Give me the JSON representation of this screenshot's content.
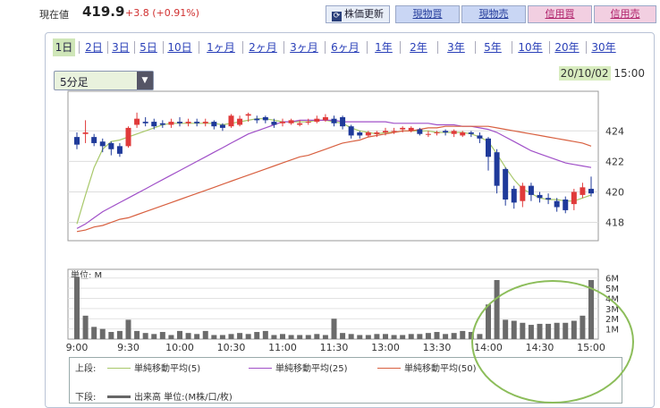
{
  "quote": {
    "label": "現在値",
    "price": "419.9",
    "change": "+3.8 (+0.91%)"
  },
  "actions": [
    {
      "label": "株価更新",
      "style": "refresh"
    },
    {
      "label": "現物買",
      "style": "blue"
    },
    {
      "label": "現物売",
      "style": "blue"
    },
    {
      "label": "信用買",
      "style": "pink"
    },
    {
      "label": "信用売",
      "style": "pink"
    }
  ],
  "tabs": [
    "1日",
    "2日",
    "3日",
    "5日",
    "10日",
    "1ヶ月",
    "2ヶ月",
    "3ヶ月",
    "6ヶ月",
    "1年",
    "2年",
    "3年",
    "5年",
    "10年",
    "20年",
    "30年"
  ],
  "active_tab": 0,
  "interval": {
    "selected": "5分足"
  },
  "datetime": {
    "date": "20/10/02",
    "time": "15:00"
  },
  "legend": {
    "upper_label": "上段:",
    "lower_label": "下段:",
    "items": [
      {
        "label": "単純移動平均(5)",
        "color": "#a8c86a"
      },
      {
        "label": "単純移動平均(25)",
        "color": "#a050c8"
      },
      {
        "label": "単純移動平均(50)",
        "color": "#d86040"
      }
    ],
    "volume_label": "出来高 単位:(M株/口/枚)",
    "volume_color": "#666666"
  },
  "volume_unit_label": "単位: M",
  "chart_data": [
    {
      "type": "candlestick",
      "x": [
        "9:00",
        "9:05",
        "9:10",
        "9:15",
        "9:20",
        "9:25",
        "9:30",
        "9:35",
        "9:40",
        "9:45",
        "9:50",
        "9:55",
        "10:00",
        "10:05",
        "10:10",
        "10:15",
        "10:20",
        "10:25",
        "10:30",
        "10:35",
        "10:40",
        "10:45",
        "10:50",
        "10:55",
        "11:00",
        "11:05",
        "11:10",
        "11:15",
        "11:20",
        "11:25",
        "11:30",
        "12:35",
        "12:40",
        "12:45",
        "12:50",
        "12:55",
        "13:00",
        "13:05",
        "13:10",
        "13:15",
        "13:20",
        "13:25",
        "13:30",
        "13:35",
        "13:40",
        "13:45",
        "13:50",
        "13:55",
        "14:00",
        "14:05",
        "14:10",
        "14:15",
        "14:20",
        "14:25",
        "14:30",
        "14:35",
        "14:40",
        "14:45",
        "14:50",
        "14:55",
        "15:00"
      ],
      "x_tick_labels": [
        "9:00",
        "9:30",
        "10:00",
        "10:30",
        "11:00",
        "11:30",
        "13:00",
        "13:30",
        "14:00",
        "14:30",
        "15:00"
      ],
      "ylim": [
        416.8,
        426.6
      ],
      "y_ticks": [
        418,
        420,
        422,
        424
      ],
      "open": [
        423.6,
        423.8,
        423.6,
        423.3,
        423.2,
        423.0,
        423.0,
        424.4,
        424.6,
        424.6,
        424.5,
        424.4,
        424.6,
        424.5,
        424.6,
        424.5,
        424.6,
        424.4,
        424.3,
        424.4,
        425.0,
        424.8,
        424.9,
        424.6,
        424.5,
        424.5,
        424.4,
        424.6,
        424.6,
        424.7,
        424.8,
        424.9,
        424.3,
        423.9,
        423.7,
        423.8,
        423.9,
        424.0,
        424.1,
        424.0,
        424.1,
        423.8,
        423.9,
        424.0,
        423.8,
        423.7,
        423.9,
        423.7,
        423.5,
        422.6,
        421.5,
        420.2,
        419.4,
        420.4,
        419.8,
        419.6,
        419.4,
        419.5,
        419.2,
        419.8,
        420.2
      ],
      "close": [
        423.1,
        423.9,
        423.2,
        423.0,
        422.8,
        422.5,
        424.2,
        424.8,
        424.5,
        424.3,
        424.4,
        424.6,
        424.5,
        424.6,
        424.5,
        424.6,
        424.3,
        424.2,
        425.0,
        424.8,
        425.1,
        424.7,
        424.7,
        424.4,
        424.6,
        424.7,
        424.5,
        424.6,
        424.8,
        424.9,
        424.5,
        424.3,
        423.7,
        423.7,
        423.9,
        423.9,
        424.0,
        424.0,
        424.2,
        424.2,
        423.8,
        423.8,
        423.9,
        423.9,
        424.0,
        423.9,
        423.8,
        423.5,
        422.3,
        420.4,
        419.5,
        419.3,
        420.4,
        419.8,
        419.6,
        419.5,
        419.0,
        418.8,
        420.0,
        420.3,
        419.9
      ],
      "high": [
        423.9,
        424.7,
        423.8,
        423.5,
        423.3,
        423.2,
        424.3,
        425.2,
        424.9,
        424.8,
        424.7,
        424.8,
        424.9,
        424.8,
        424.8,
        424.8,
        424.7,
        424.5,
        425.1,
        425.0,
        425.2,
        425.0,
        425.0,
        424.8,
        424.8,
        424.8,
        424.7,
        424.8,
        425.0,
        425.1,
        425.0,
        425.0,
        424.4,
        424.0,
        424.0,
        424.0,
        424.2,
        424.2,
        424.3,
        424.3,
        424.2,
        424.0,
        424.0,
        424.1,
        424.1,
        424.0,
        424.0,
        423.9,
        423.6,
        422.8,
        421.6,
        420.4,
        420.6,
        420.6,
        420.0,
        419.9,
        419.6,
        419.7,
        420.2,
        420.6,
        421.0
      ],
      "low": [
        422.8,
        423.2,
        423.0,
        422.6,
        422.4,
        422.3,
        422.9,
        424.2,
        424.3,
        424.1,
        424.2,
        424.2,
        424.3,
        424.3,
        424.3,
        424.3,
        424.1,
        424.0,
        424.2,
        424.3,
        424.6,
        424.5,
        424.5,
        424.2,
        424.3,
        424.4,
        424.3,
        424.4,
        424.5,
        424.6,
        424.3,
        424.1,
        423.5,
        423.5,
        423.6,
        423.6,
        423.7,
        423.8,
        423.9,
        423.9,
        423.7,
        423.6,
        423.7,
        423.7,
        423.6,
        423.6,
        423.6,
        423.2,
        421.4,
        419.9,
        419.1,
        418.9,
        419.0,
        419.4,
        419.3,
        419.2,
        418.7,
        418.6,
        418.8,
        419.6,
        419.7
      ],
      "series": [
        {
          "name": "単純移動平均(5)",
          "color": "#a8c86a",
          "x_start": 0,
          "values": [
            417.9,
            419.8,
            421.6,
            422.8,
            423.3,
            423.4,
            423.6,
            423.8,
            424.0,
            424.2,
            424.4,
            424.5,
            424.5,
            424.5,
            424.5,
            424.5,
            424.5,
            424.4,
            424.5,
            424.6,
            424.7,
            424.8,
            424.8,
            424.7,
            424.6,
            424.6,
            424.6,
            424.6,
            424.7,
            424.7,
            424.6,
            424.5,
            424.2,
            424.0,
            423.9,
            423.8,
            423.9,
            423.9,
            424.0,
            424.0,
            424.0,
            424.0,
            423.9,
            423.9,
            423.9,
            423.9,
            423.8,
            423.6,
            423.3,
            422.5,
            421.6,
            420.8,
            420.2,
            419.9,
            419.6,
            419.5,
            419.5,
            419.4,
            419.4,
            419.6,
            419.8
          ]
        },
        {
          "name": "単純移動平均(25)",
          "color": "#a050c8",
          "x_start": 0,
          "values": [
            417.6,
            417.9,
            418.3,
            418.7,
            419.0,
            419.3,
            419.6,
            419.9,
            420.2,
            420.5,
            420.8,
            421.1,
            421.4,
            421.7,
            422.0,
            422.3,
            422.6,
            422.9,
            423.2,
            423.5,
            423.8,
            424.0,
            424.2,
            424.4,
            424.6,
            424.6,
            424.7,
            424.7,
            424.7,
            424.7,
            424.7,
            424.6,
            424.6,
            424.6,
            424.6,
            424.6,
            424.6,
            424.5,
            424.5,
            424.5,
            424.5,
            424.5,
            424.4,
            424.4,
            424.4,
            424.3,
            424.3,
            424.2,
            424.1,
            423.9,
            423.6,
            423.3,
            423.0,
            422.7,
            422.5,
            422.3,
            422.1,
            421.9,
            421.8,
            421.7,
            421.6
          ]
        },
        {
          "name": "単純移動平均(50)",
          "color": "#d86040",
          "x_start": 0,
          "values": [
            417.4,
            417.5,
            417.7,
            417.8,
            418.0,
            418.2,
            418.3,
            418.5,
            418.7,
            418.9,
            419.1,
            419.3,
            419.5,
            419.7,
            419.9,
            420.1,
            420.3,
            420.5,
            420.7,
            420.9,
            421.1,
            421.3,
            421.5,
            421.7,
            421.9,
            422.1,
            422.3,
            422.4,
            422.6,
            422.8,
            423.0,
            423.2,
            423.3,
            423.4,
            423.6,
            423.7,
            423.8,
            423.9,
            424.0,
            424.0,
            424.1,
            424.2,
            424.2,
            424.3,
            424.3,
            424.3,
            424.3,
            424.3,
            424.3,
            424.2,
            424.1,
            424.0,
            423.9,
            423.8,
            423.7,
            423.6,
            423.5,
            423.4,
            423.3,
            423.2,
            423.0
          ]
        }
      ]
    },
    {
      "type": "bar",
      "title": "出来高",
      "ylabel": "単位: M",
      "ylim": [
        0,
        6.5
      ],
      "y_tick_labels": [
        "1M",
        "2M",
        "3M",
        "4M",
        "5M",
        "6M"
      ],
      "values": [
        6.1,
        2.3,
        1.2,
        1.0,
        0.7,
        0.8,
        1.9,
        0.8,
        0.6,
        0.5,
        0.7,
        0.4,
        0.8,
        0.6,
        0.5,
        0.8,
        0.4,
        0.4,
        0.5,
        0.6,
        0.5,
        0.7,
        0.8,
        0.4,
        0.5,
        0.4,
        0.4,
        0.4,
        0.5,
        0.4,
        2.0,
        0.6,
        0.5,
        0.4,
        0.4,
        0.5,
        0.5,
        0.4,
        0.4,
        0.5,
        0.5,
        0.6,
        0.7,
        0.5,
        0.6,
        0.8,
        0.7,
        0.5,
        3.4,
        5.8,
        1.9,
        1.8,
        1.6,
        1.4,
        1.5,
        1.5,
        1.6,
        1.6,
        1.8,
        2.3,
        5.8
      ]
    }
  ]
}
